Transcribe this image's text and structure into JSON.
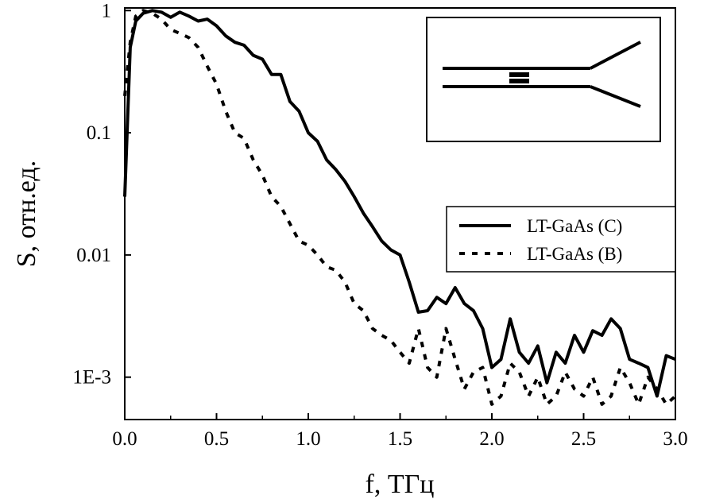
{
  "chart_data": {
    "type": "line",
    "xlabel": "f, ТГц",
    "ylabel": "S, отн.ед.",
    "xlim": [
      0.0,
      3.0
    ],
    "ylim": [
      0.00045,
      1.05
    ],
    "y_scale": "log",
    "x_ticks": [
      {
        "value": 0.0,
        "label": "0.0"
      },
      {
        "value": 0.5,
        "label": "0.5"
      },
      {
        "value": 1.0,
        "label": "1.0"
      },
      {
        "value": 1.5,
        "label": "1.5"
      },
      {
        "value": 2.0,
        "label": "2.0"
      },
      {
        "value": 2.5,
        "label": "2.5"
      },
      {
        "value": 3.0,
        "label": "3.0"
      }
    ],
    "y_ticks": [
      {
        "value": 1,
        "label": "1"
      },
      {
        "value": 0.1,
        "label": "0.1"
      },
      {
        "value": 0.01,
        "label": "0.01"
      },
      {
        "value": 0.001,
        "label": "1E-3"
      }
    ],
    "legend_position": "right",
    "grid": false,
    "series": [
      {
        "name": "LT-GaAs (C)",
        "style": "solid",
        "color": "#000000",
        "x": [
          0.0,
          0.03,
          0.06,
          0.1,
          0.15,
          0.2,
          0.25,
          0.3,
          0.35,
          0.4,
          0.45,
          0.5,
          0.55,
          0.6,
          0.65,
          0.7,
          0.75,
          0.8,
          0.85,
          0.9,
          0.95,
          1.0,
          1.05,
          1.1,
          1.15,
          1.2,
          1.25,
          1.3,
          1.35,
          1.4,
          1.45,
          1.5,
          1.55,
          1.6,
          1.65,
          1.7,
          1.75,
          1.8,
          1.85,
          1.9,
          1.95,
          2.0,
          2.05,
          2.1,
          2.15,
          2.2,
          2.25,
          2.3,
          2.35,
          2.4,
          2.45,
          2.5,
          2.55,
          2.6,
          2.65,
          2.7,
          2.75,
          2.8,
          2.85,
          2.9,
          2.95,
          3.0
        ],
        "y": [
          0.03,
          0.5,
          0.82,
          0.95,
          1.0,
          0.97,
          0.88,
          0.97,
          0.9,
          0.82,
          0.85,
          0.75,
          0.62,
          0.55,
          0.52,
          0.43,
          0.4,
          0.3,
          0.3,
          0.18,
          0.15,
          0.1,
          0.085,
          0.06,
          0.05,
          0.04,
          0.03,
          0.022,
          0.017,
          0.013,
          0.011,
          0.01,
          0.006,
          0.0034,
          0.0035,
          0.0045,
          0.004,
          0.0054,
          0.004,
          0.0035,
          0.0025,
          0.0012,
          0.0014,
          0.003,
          0.0016,
          0.0013,
          0.0018,
          0.0009,
          0.0016,
          0.0013,
          0.0022,
          0.0016,
          0.0024,
          0.0022,
          0.003,
          0.0025,
          0.0014,
          0.0013,
          0.0012,
          0.0007,
          0.0015,
          0.0014
        ]
      },
      {
        "name": "LT-GaAs (B)",
        "style": "dotted",
        "color": "#000000",
        "x": [
          0.0,
          0.03,
          0.06,
          0.1,
          0.15,
          0.2,
          0.25,
          0.3,
          0.35,
          0.4,
          0.45,
          0.5,
          0.55,
          0.6,
          0.65,
          0.7,
          0.75,
          0.8,
          0.85,
          0.9,
          0.95,
          1.0,
          1.05,
          1.1,
          1.15,
          1.2,
          1.25,
          1.3,
          1.35,
          1.4,
          1.45,
          1.5,
          1.55,
          1.6,
          1.65,
          1.7,
          1.75,
          1.8,
          1.85,
          1.9,
          1.95,
          2.0,
          2.05,
          2.1,
          2.15,
          2.2,
          2.25,
          2.3,
          2.35,
          2.4,
          2.45,
          2.5,
          2.55,
          2.6,
          2.65,
          2.7,
          2.75,
          2.8,
          2.85,
          2.9,
          2.95,
          3.0
        ],
        "y": [
          0.2,
          0.55,
          0.9,
          1.0,
          0.95,
          0.85,
          0.7,
          0.65,
          0.6,
          0.5,
          0.35,
          0.25,
          0.15,
          0.1,
          0.09,
          0.06,
          0.045,
          0.03,
          0.025,
          0.018,
          0.013,
          0.012,
          0.01,
          0.008,
          0.0075,
          0.006,
          0.004,
          0.0035,
          0.0025,
          0.0022,
          0.002,
          0.0016,
          0.0013,
          0.0025,
          0.0012,
          0.001,
          0.0025,
          0.0014,
          0.0008,
          0.0011,
          0.0012,
          0.0006,
          0.0007,
          0.0013,
          0.0011,
          0.0007,
          0.001,
          0.0006,
          0.0007,
          0.0011,
          0.0008,
          0.0007,
          0.001,
          0.0006,
          0.0007,
          0.0012,
          0.0009,
          0.0006,
          0.001,
          0.0008,
          0.0006,
          0.0007
        ]
      }
    ]
  }
}
